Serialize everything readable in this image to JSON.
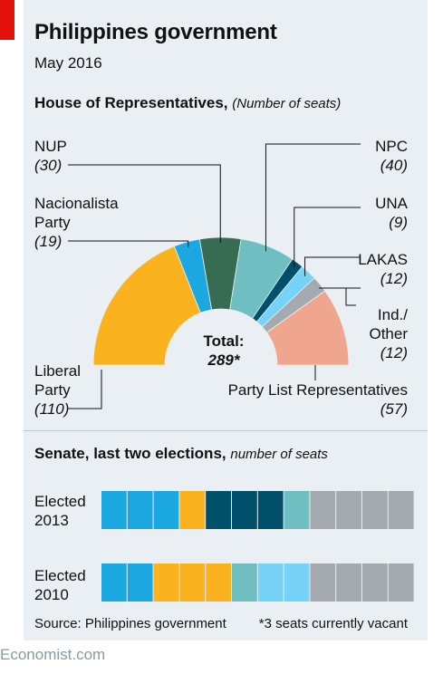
{
  "header": {
    "title": "Philippines government",
    "subtitle": "May 2016"
  },
  "house": {
    "title": "House of Representatives,",
    "unit": "(Number of seats)",
    "total_label": "Total:",
    "total_value": "289*",
    "labels": [
      {
        "id": "nup",
        "lines": [
          "NUP"
        ],
        "value": "(30)"
      },
      {
        "id": "nacionalista",
        "lines": [
          "Nacionalista",
          "Party"
        ],
        "value": "(19)"
      },
      {
        "id": "liberal",
        "lines": [
          "Liberal",
          "Party"
        ],
        "value": "(110)"
      },
      {
        "id": "npc",
        "lines": [
          "NPC"
        ],
        "value": "(40)"
      },
      {
        "id": "una",
        "lines": [
          "UNA"
        ],
        "value": "(9)"
      },
      {
        "id": "lakas",
        "lines": [
          "LAKAS"
        ],
        "value": "(12)"
      },
      {
        "id": "ind",
        "lines": [
          "Ind./",
          "Other"
        ],
        "value": "(12)"
      },
      {
        "id": "partylist",
        "lines": [
          "Party List Representatives"
        ],
        "value": "(57)"
      }
    ]
  },
  "senate": {
    "title": "Senate, last two elections,",
    "unit": "number of seats",
    "row_2013": [
      "Elected",
      "2013"
    ],
    "row_2010": [
      "Elected",
      "2010"
    ]
  },
  "footer": {
    "source": "Source: Philippines government",
    "note": "*3 seats currently vacant",
    "brand": "Economist.com"
  },
  "chart_data": [
    {
      "type": "pie",
      "variant": "half-donut",
      "title": "House of Representatives",
      "total": 289,
      "categories": [
        "Liberal Party",
        "Nacionalista Party",
        "NUP",
        "NPC",
        "UNA",
        "LAKAS",
        "Ind./Other",
        "Party List Representatives"
      ],
      "values": [
        110,
        19,
        30,
        40,
        9,
        12,
        12,
        57
      ],
      "colors": [
        "#fbb21f",
        "#1ba7df",
        "#386c52",
        "#6fbfc2",
        "#004f6b",
        "#77d2f7",
        "#a5aab0",
        "#f0a58e"
      ]
    },
    {
      "type": "bar",
      "variant": "waffle",
      "title": "Senate, last two elections",
      "rows": [
        {
          "name": "Elected 2013",
          "cells": [
            "#1ba7df",
            "#1ba7df",
            "#1ba7df",
            "#fbb21f",
            "#004f6b",
            "#004f6b",
            "#004f6b",
            "#6fbfc2",
            "#a5aab0",
            "#a5aab0",
            "#a5aab0",
            "#a5aab0"
          ]
        },
        {
          "name": "Elected 2010",
          "cells": [
            "#1ba7df",
            "#1ba7df",
            "#fbb21f",
            "#fbb21f",
            "#fbb21f",
            "#6fbfc2",
            "#77d2f7",
            "#77d2f7",
            "#a5aab0",
            "#a5aab0",
            "#a5aab0",
            "#a5aab0"
          ]
        }
      ]
    }
  ]
}
